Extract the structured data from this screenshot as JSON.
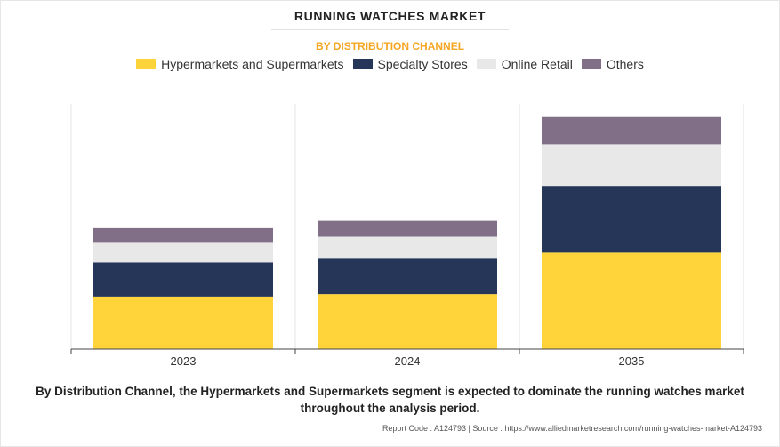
{
  "header": {
    "title": "RUNNING WATCHES MARKET",
    "subtitle": "BY DISTRIBUTION CHANNEL"
  },
  "caption": "By Distribution Channel, the Hypermarkets and Supermarkets segment is expected to dominate the running watches market throughout the analysis period.",
  "source": "Report Code : A124793  |  Source : https://www.alliedmarketresearch.com/running-watches-market-A124793",
  "chart_data": {
    "type": "bar",
    "stacked": true,
    "title": "RUNNING WATCHES MARKET",
    "subtitle": "BY DISTRIBUTION CHANNEL",
    "xlabel": "",
    "ylabel": "",
    "categories": [
      "2023",
      "2024",
      "2035"
    ],
    "ylim": [
      0,
      100
    ],
    "grid": "vertical separators",
    "legend_position": "top",
    "series": [
      {
        "name": "Hypermarkets and Supermarkets",
        "color": "#ffd43b",
        "values": [
          21.5,
          22.5,
          39.5
        ]
      },
      {
        "name": "Specialty Stores",
        "color": "#253659",
        "values": [
          14,
          14.5,
          27
        ]
      },
      {
        "name": "Online Retail",
        "color": "#e8e8e8",
        "values": [
          8,
          9,
          17
        ]
      },
      {
        "name": "Others",
        "color": "#806f86",
        "values": [
          6,
          6.5,
          11.5
        ]
      }
    ]
  }
}
